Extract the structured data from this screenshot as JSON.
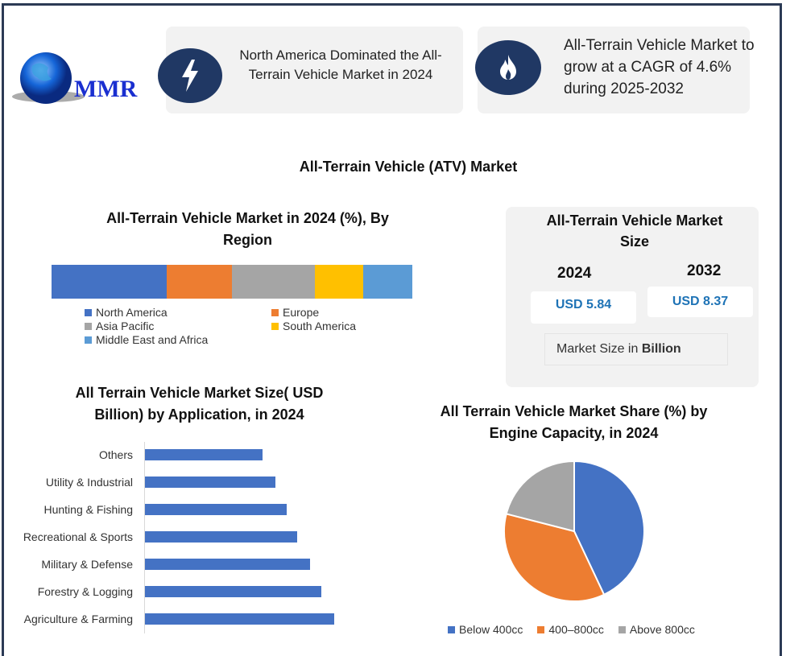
{
  "logo": {
    "text": "MMR"
  },
  "highlights": [
    {
      "icon": "lightning-icon",
      "text": "North America Dominated the All-Terrain Vehicle Market in 2024"
    },
    {
      "icon": "flame-icon",
      "text": "All-Terrain Vehicle Market to grow at a CAGR of 4.6% during 2025-2032"
    }
  ],
  "main_title": "All-Terrain Vehicle (ATV) Market",
  "market_size": {
    "title": "All-Terrain Vehicle Market Size",
    "year1": "2024",
    "value1": "USD 5.84",
    "year2": "2032",
    "value2": "USD 8.37",
    "note_prefix": "Market Size in ",
    "note_bold": "Billion"
  },
  "chart_data": [
    {
      "type": "bar",
      "stacked": true,
      "title": "All-Terrain Vehicle Market in 2024 (%), By Region",
      "categories": [
        "North America",
        "Europe",
        "Asia Pacific",
        "South America",
        "Middle East and Africa"
      ],
      "values": [
        32,
        18,
        23,
        13.5,
        13.5
      ],
      "colors": [
        "#4472c4",
        "#ed7d31",
        "#a5a5a5",
        "#ffc000",
        "#5b9bd5"
      ],
      "legend": "bottom"
    },
    {
      "type": "bar",
      "orientation": "horizontal",
      "title": "All Terrain Vehicle Market Size( USD Billion) by Application, in 2024",
      "categories": [
        "Others",
        "Utility & Industrial",
        "Hunting & Fishing",
        "Recreational & Sports",
        "Military & Defense",
        "Forestry & Logging",
        "Agriculture & Farming"
      ],
      "values": [
        0.64,
        0.71,
        0.77,
        0.83,
        0.9,
        0.96,
        1.03
      ],
      "color": "#4472c4"
    },
    {
      "type": "pie",
      "title": "All Terrain Vehicle Market Share (%) by Engine Capacity, in 2024",
      "categories": [
        "Below 400cc",
        "400–800cc",
        "Above 800cc"
      ],
      "values": [
        43,
        36,
        21
      ],
      "colors": [
        "#4472c4",
        "#ed7d31",
        "#a5a5a5"
      ],
      "legend": "bottom"
    }
  ]
}
